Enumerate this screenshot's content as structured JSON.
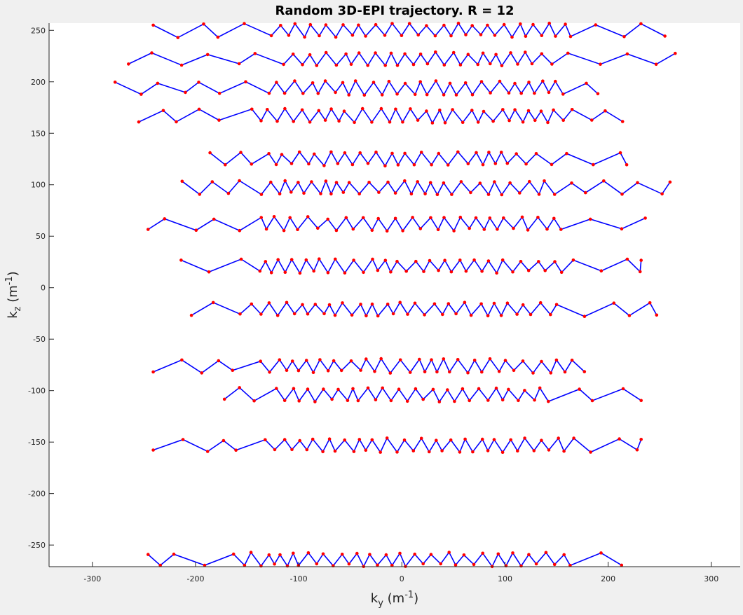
{
  "chart_data": {
    "type": "line",
    "title": "Random 3D-EPI trajectory. R = 12",
    "xlabel_main": "k",
    "xlabel_sub": "y",
    "xlabel_unit_pre": " (m",
    "xlabel_unit_sup": "-1",
    "xlabel_unit_post": ")",
    "ylabel_main": "k",
    "ylabel_sub": "z",
    "ylabel_unit_pre": " (m",
    "ylabel_unit_sup": "-1",
    "ylabel_unit_post": ")",
    "xlim": [
      -342,
      328
    ],
    "ylim": [
      -271,
      257
    ],
    "xticks": [
      -300,
      -200,
      -100,
      0,
      100,
      200,
      300
    ],
    "yticks": [
      250,
      200,
      150,
      100,
      50,
      0,
      -50,
      -100,
      -150,
      -200,
      -250
    ],
    "line_color": "#0000ff",
    "marker_color": "#ff0000",
    "grid": false,
    "bands": [
      {
        "center": 250,
        "amp": 7,
        "x_start": -241,
        "x_end": 255,
        "dense_start": -130,
        "dense_end": 160
      },
      {
        "center": 222,
        "amp": 7,
        "x_start": -265,
        "x_end": 265,
        "dense_start": -140,
        "dense_end": 140
      },
      {
        "center": 194,
        "amp": 7,
        "x_start": -278,
        "x_end": 190,
        "dense_start": -150,
        "dense_end": 150
      },
      {
        "center": 167,
        "amp": 7,
        "x_start": -255,
        "x_end": 214,
        "dense_start": -150,
        "dense_end": 160
      },
      {
        "center": 125,
        "amp": 7,
        "x_start": -186,
        "x_end": 218,
        "dense_start": -140,
        "dense_end": 130
      },
      {
        "center": 97,
        "amp": 7,
        "x_start": -213,
        "x_end": 260,
        "dense_start": -150,
        "dense_end": 140
      },
      {
        "center": 62,
        "amp": 7,
        "x_start": -246,
        "x_end": 236,
        "dense_start": -150,
        "dense_end": 150
      },
      {
        "center": 21,
        "amp": 7,
        "x_start": -214,
        "x_end": 232,
        "dense_start": -150,
        "dense_end": 150
      },
      {
        "center": -21,
        "amp": 7,
        "x_start": -204,
        "x_end": 247,
        "dense_start": -150,
        "dense_end": 150
      },
      {
        "center": -76,
        "amp": 7,
        "x_start": -241,
        "x_end": 177,
        "dense_start": -150,
        "dense_end": 160
      },
      {
        "center": -104,
        "amp": 7,
        "x_start": -172,
        "x_end": 232,
        "dense_start": -140,
        "dense_end": 140
      },
      {
        "center": -153,
        "amp": 7,
        "x_start": -241,
        "x_end": 232,
        "dense_start": -150,
        "dense_end": 160
      },
      {
        "center": -264,
        "amp": 7,
        "x_start": -246,
        "x_end": 213,
        "dense_start": -160,
        "dense_end": 160
      }
    ]
  }
}
